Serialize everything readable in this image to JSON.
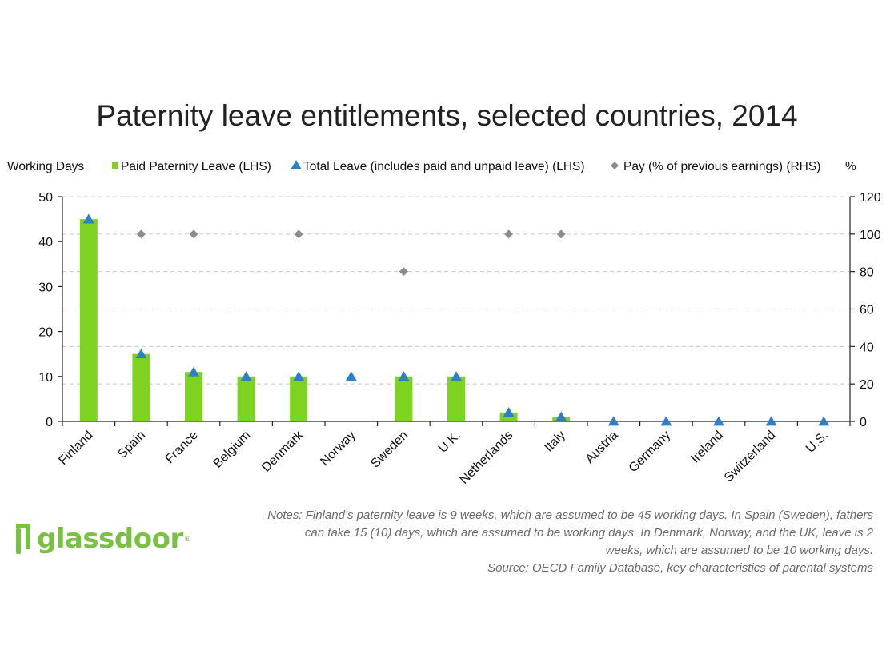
{
  "chart_data": {
    "type": "bar",
    "title": "Paternity leave entitlements, selected countries, 2014",
    "left_axis_label": "Working Days",
    "right_axis_label": "%",
    "categories": [
      "Finland",
      "Spain",
      "France",
      "Belgium",
      "Denmark",
      "Norway",
      "Sweden",
      "U.K.",
      "Netherlands",
      "Italy",
      "Austria",
      "Germany",
      "Ireland",
      "Switzerland",
      "U.S."
    ],
    "y_left_lim": [
      0,
      50
    ],
    "y_left_ticks": [
      0,
      10,
      20,
      30,
      40,
      50
    ],
    "y_right_lim": [
      0,
      120
    ],
    "y_right_ticks": [
      0,
      20,
      40,
      60,
      80,
      100,
      120
    ],
    "grid": true,
    "legend_position": "top",
    "series": [
      {
        "name": "Paid Paternity Leave (LHS)",
        "kind": "bar",
        "axis": "left",
        "color": "#7ed321",
        "values": [
          45,
          15,
          11,
          10,
          10,
          0,
          10,
          10,
          2,
          1,
          0,
          0,
          0,
          0,
          0
        ]
      },
      {
        "name": "Total Leave (includes paid and unpaid leave) (LHS)",
        "kind": "triangle",
        "axis": "left",
        "color": "#2f7fc7",
        "values": [
          45,
          15,
          11,
          10,
          10,
          10,
          10,
          10,
          2,
          1,
          0,
          0,
          0,
          0,
          0
        ]
      },
      {
        "name": "Pay (% of previous earnings) (RHS)",
        "kind": "diamond",
        "axis": "right",
        "color": "#8c8c8c",
        "values": [
          null,
          100,
          100,
          null,
          100,
          null,
          80,
          null,
          100,
          100,
          null,
          null,
          null,
          null,
          null
        ]
      }
    ]
  },
  "notes": "Notes: Finland’s paternity leave is 9 weeks, which are assumed to be 45 working days. In Spain (Sweden), fathers can take 15 (10) days, which are assumed to be working days. In Denmark, Norway, and the UK, leave is 2 weeks, which are assumed to be 10 working days.",
  "source": "Source: OECD Family Database, key characteristics of parental systems",
  "logo": {
    "text": "glassdoor",
    "mark": "®",
    "icon": "glassdoor-logo-icon"
  }
}
